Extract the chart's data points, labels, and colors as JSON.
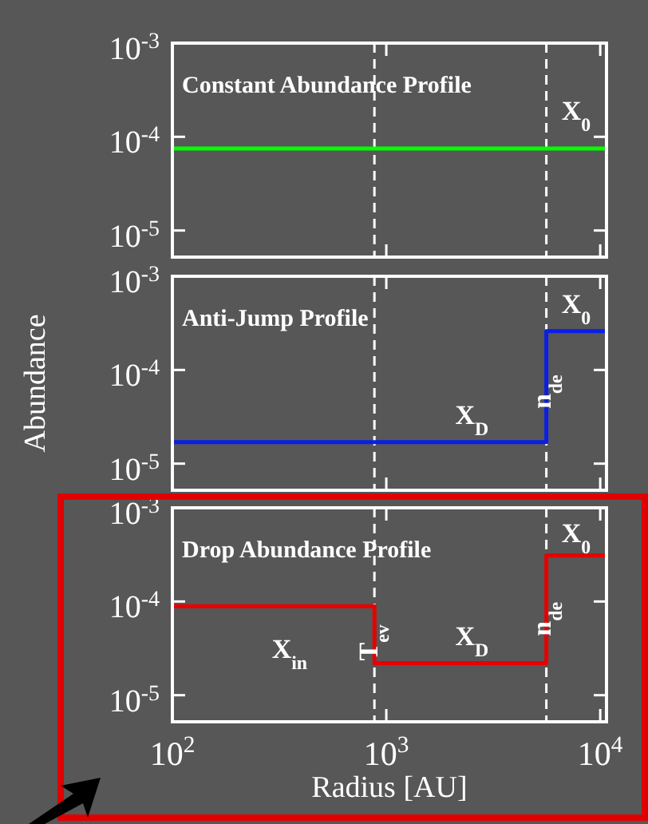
{
  "chart_data": [
    {
      "type": "line",
      "title": "Constant Abundance Profile",
      "xlim": [
        100,
        10700
      ],
      "xticks": [
        {
          "value": 100,
          "label": null
        },
        {
          "value": 1000,
          "label": null
        },
        {
          "value": 10000,
          "label": null
        }
      ],
      "ylim": [
        5.2e-06,
        0.001
      ],
      "yticks": [
        {
          "value": 0.001,
          "label": "10$^{-3}$"
        },
        {
          "value": 0.0001,
          "label": "10$^{-4}$"
        },
        {
          "value": 1e-05,
          "label": "10$^{-5}$"
        }
      ],
      "log": "xy",
      "tick_labels": "y",
      "grid": false,
      "series": [
        {
          "color": "#00ff00",
          "x": [
            100,
            10700
          ],
          "values": [
            7.5e-05,
            7.5e-05
          ]
        }
      ],
      "ref_lines": [
        {
          "axis": "x",
          "value": 880,
          "color": "#ffffff",
          "line_style": "dashed"
        },
        {
          "axis": "x",
          "value": 5600,
          "color": "#ffffff",
          "line_style": "dashed"
        }
      ],
      "annotations": [
        "X$_{0}$"
      ]
    },
    {
      "type": "step",
      "title": "Anti-Jump Profile",
      "ylabel": "Abundance",
      "xlim": [
        100,
        10700
      ],
      "xticks": [
        {
          "value": 100,
          "label": null
        },
        {
          "value": 1000,
          "label": null
        },
        {
          "value": 10000,
          "label": null
        }
      ],
      "ylim": [
        5.2e-06,
        0.001
      ],
      "yticks": [
        {
          "value": 0.001,
          "label": "10$^{-3}$"
        },
        {
          "value": 0.0001,
          "label": "10$^{-4}$"
        },
        {
          "value": 1e-05,
          "label": "10$^{-5}$"
        }
      ],
      "log": "xy",
      "tick_labels": "y",
      "grid": false,
      "series": [
        {
          "color": "#0a1ee6",
          "x": [
            100,
            5600,
            10700
          ],
          "values": [
            1.7e-05,
            0.00026,
            0.00026
          ]
        }
      ],
      "ref_lines": [
        {
          "axis": "x",
          "value": 880,
          "color": "#ffffff",
          "line_style": "dashed"
        },
        {
          "axis": "x",
          "value": 5600,
          "color": "#ffffff",
          "line_style": "dashed"
        }
      ],
      "annotations": [
        "X$_{0}$",
        "X$_{D}$",
        "n$_{de}$"
      ]
    },
    {
      "type": "step",
      "title": "Drop Abundance Profile",
      "xlabel": "Radius [AU]",
      "xlim": [
        100,
        10700
      ],
      "xticks": [
        {
          "value": 100,
          "label": "10$^{2}$"
        },
        {
          "value": 1000,
          "label": "10$^{3}$"
        },
        {
          "value": 10000,
          "label": "10$^{4}$"
        }
      ],
      "ylim": [
        5.2e-06,
        0.001
      ],
      "yticks": [
        {
          "value": 0.001,
          "label": "10$^{-3}$"
        },
        {
          "value": 0.0001,
          "label": "10$^{-4}$"
        },
        {
          "value": 1e-05,
          "label": "10$^{-5}$"
        }
      ],
      "log": "xy",
      "grid": false,
      "series": [
        {
          "color": "#e80000",
          "x": [
            100,
            880,
            5600,
            10700
          ],
          "values": [
            8.9e-05,
            2.2e-05,
            0.00031,
            0.00031
          ]
        }
      ],
      "ref_lines": [
        {
          "axis": "x",
          "value": 880,
          "color": "#ffffff",
          "line_style": "dashed"
        },
        {
          "axis": "x",
          "value": 5600,
          "color": "#ffffff",
          "line_style": "dashed"
        }
      ],
      "annotations": [
        "X$_{in}$",
        "T$_{ev}$",
        "X$_{D}$",
        "n$_{de}$",
        "X$_{0}$"
      ]
    }
  ]
}
